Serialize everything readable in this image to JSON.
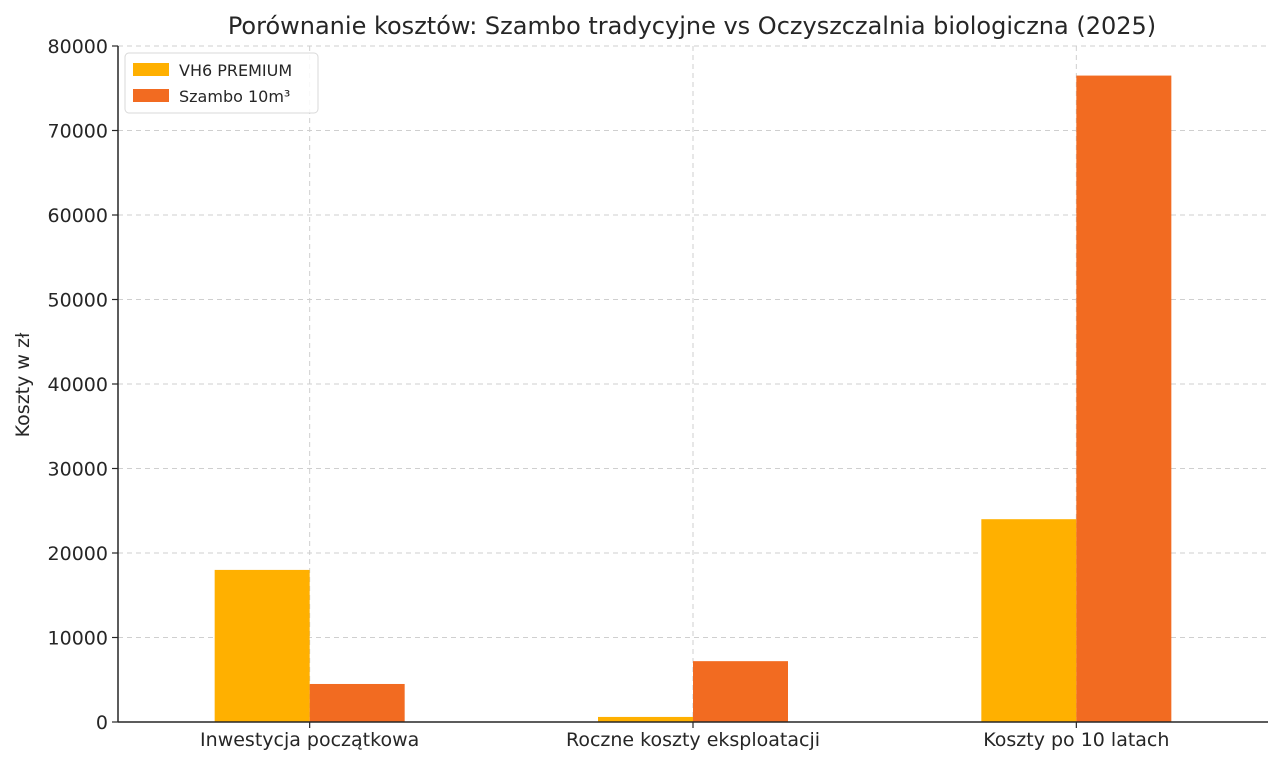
{
  "chart_data": {
    "type": "bar",
    "title": "Porównanie kosztów: Szambo tradycyjne vs Oczyszczalnia biologiczna (2025)",
    "xlabel": "",
    "ylabel": "Koszty w zł",
    "categories": [
      "Inwestycja początkowa",
      "Roczne koszty eksploatacji",
      "Koszty po 10 latach"
    ],
    "series": [
      {
        "name": "VH6 PREMIUM",
        "color": "#FFB000",
        "values": [
          18000,
          600,
          24000
        ]
      },
      {
        "name": "Szambo 10m³",
        "color": "#F26B21",
        "values": [
          4500,
          7200,
          76500
        ]
      }
    ],
    "ylim": [
      0,
      80000
    ],
    "yticks": [
      0,
      10000,
      20000,
      30000,
      40000,
      50000,
      60000,
      70000,
      80000
    ],
    "grid": true,
    "legend": "top-left"
  }
}
